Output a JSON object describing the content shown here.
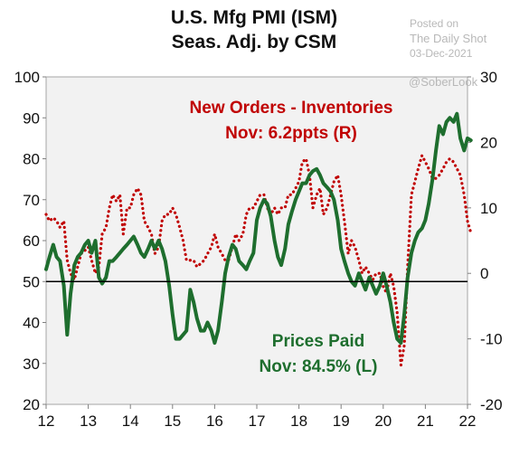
{
  "chart_data": {
    "type": "line",
    "title_lines": [
      "U.S. Mfg PMI (ISM)",
      "Seas. Adj.  by CSM"
    ],
    "watermark": {
      "posted_on": "Posted on",
      "source": "The Daily Shot",
      "date": "03-Dec-2021",
      "handle": "@SoberLook"
    },
    "x_ticks": [
      "12",
      "13",
      "14",
      "15",
      "16",
      "17",
      "18",
      "19",
      "20",
      "21",
      "22"
    ],
    "xlim": [
      2012,
      2022
    ],
    "left_axis": {
      "ylim": [
        20,
        100
      ],
      "ticks": [
        "100",
        "90",
        "80",
        "70",
        "60",
        "50",
        "40",
        "30",
        "20"
      ]
    },
    "right_axis": {
      "ylim": [
        -20,
        30
      ],
      "ticks": [
        "30",
        "20",
        "10",
        "0",
        "-10",
        "-20"
      ]
    },
    "reference_line": {
      "axis": "left",
      "value": 50
    },
    "background_color": "#f2f2f2",
    "series": [
      {
        "name": "Prices Paid",
        "axis": "left",
        "style": "solid",
        "color": "#1e6e2e",
        "label_lines": [
          "Prices Paid",
          "Nov: 84.5% (L)"
        ],
        "points": [
          [
            2012.0,
            53
          ],
          [
            2012.08,
            56
          ],
          [
            2012.17,
            59
          ],
          [
            2012.25,
            56
          ],
          [
            2012.33,
            55
          ],
          [
            2012.42,
            49
          ],
          [
            2012.5,
            37
          ],
          [
            2012.58,
            47
          ],
          [
            2012.67,
            54
          ],
          [
            2012.75,
            56
          ],
          [
            2012.83,
            57
          ],
          [
            2012.92,
            59
          ],
          [
            2013.0,
            60
          ],
          [
            2013.08,
            57
          ],
          [
            2013.17,
            60
          ],
          [
            2013.25,
            51
          ],
          [
            2013.33,
            49.5
          ],
          [
            2013.42,
            51
          ],
          [
            2013.5,
            55
          ],
          [
            2013.58,
            55
          ],
          [
            2013.67,
            56
          ],
          [
            2013.75,
            57
          ],
          [
            2013.83,
            58
          ],
          [
            2013.92,
            59
          ],
          [
            2014.0,
            60
          ],
          [
            2014.08,
            61
          ],
          [
            2014.17,
            59
          ],
          [
            2014.25,
            57
          ],
          [
            2014.33,
            56
          ],
          [
            2014.42,
            58
          ],
          [
            2014.5,
            60
          ],
          [
            2014.58,
            58
          ],
          [
            2014.67,
            60
          ],
          [
            2014.75,
            58
          ],
          [
            2014.83,
            55
          ],
          [
            2014.92,
            49
          ],
          [
            2015.0,
            42
          ],
          [
            2015.08,
            36
          ],
          [
            2015.17,
            36
          ],
          [
            2015.25,
            37
          ],
          [
            2015.33,
            38
          ],
          [
            2015.42,
            48
          ],
          [
            2015.5,
            45
          ],
          [
            2015.58,
            41
          ],
          [
            2015.67,
            38
          ],
          [
            2015.75,
            38
          ],
          [
            2015.83,
            40
          ],
          [
            2015.92,
            38
          ],
          [
            2016.0,
            35
          ],
          [
            2016.08,
            38
          ],
          [
            2016.17,
            45
          ],
          [
            2016.25,
            52
          ],
          [
            2016.33,
            56
          ],
          [
            2016.42,
            59
          ],
          [
            2016.5,
            58
          ],
          [
            2016.58,
            55
          ],
          [
            2016.67,
            54
          ],
          [
            2016.75,
            53
          ],
          [
            2016.83,
            55
          ],
          [
            2016.92,
            57
          ],
          [
            2017.0,
            65
          ],
          [
            2017.08,
            68
          ],
          [
            2017.17,
            70
          ],
          [
            2017.25,
            69
          ],
          [
            2017.33,
            66
          ],
          [
            2017.42,
            60
          ],
          [
            2017.5,
            56
          ],
          [
            2017.58,
            54
          ],
          [
            2017.67,
            58
          ],
          [
            2017.75,
            64
          ],
          [
            2017.83,
            67
          ],
          [
            2017.92,
            70
          ],
          [
            2018.0,
            72
          ],
          [
            2018.08,
            74
          ],
          [
            2018.17,
            74
          ],
          [
            2018.25,
            76
          ],
          [
            2018.33,
            77
          ],
          [
            2018.42,
            77.5
          ],
          [
            2018.5,
            76
          ],
          [
            2018.58,
            74
          ],
          [
            2018.67,
            73
          ],
          [
            2018.75,
            72
          ],
          [
            2018.83,
            70
          ],
          [
            2018.92,
            65
          ],
          [
            2019.0,
            58
          ],
          [
            2019.08,
            55
          ],
          [
            2019.17,
            52
          ],
          [
            2019.25,
            50
          ],
          [
            2019.33,
            49
          ],
          [
            2019.42,
            52
          ],
          [
            2019.5,
            50
          ],
          [
            2019.58,
            48
          ],
          [
            2019.67,
            51
          ],
          [
            2019.75,
            49
          ],
          [
            2019.83,
            47
          ],
          [
            2019.92,
            49
          ],
          [
            2020.0,
            52
          ],
          [
            2020.08,
            49
          ],
          [
            2020.17,
            45
          ],
          [
            2020.25,
            40
          ],
          [
            2020.33,
            36
          ],
          [
            2020.42,
            35
          ],
          [
            2020.5,
            42
          ],
          [
            2020.58,
            51
          ],
          [
            2020.67,
            57
          ],
          [
            2020.75,
            60
          ],
          [
            2020.83,
            62
          ],
          [
            2020.92,
            63
          ],
          [
            2021.0,
            65
          ],
          [
            2021.08,
            69
          ],
          [
            2021.17,
            75
          ],
          [
            2021.25,
            82
          ],
          [
            2021.33,
            88
          ],
          [
            2021.42,
            86
          ],
          [
            2021.5,
            89
          ],
          [
            2021.58,
            90
          ],
          [
            2021.67,
            89
          ],
          [
            2021.75,
            91
          ],
          [
            2021.83,
            85
          ],
          [
            2021.92,
            82
          ],
          [
            2022.0,
            85
          ],
          [
            2022.08,
            84.5
          ]
        ]
      },
      {
        "name": "New Orders - Inventories",
        "axis": "right",
        "style": "dotted",
        "color": "#c00000",
        "label_lines": [
          "New Orders - Inventories",
          "Nov: 6.2ppts (R)"
        ],
        "points": [
          [
            2012.0,
            9
          ],
          [
            2012.08,
            8
          ],
          [
            2012.17,
            8.5
          ],
          [
            2012.25,
            8
          ],
          [
            2012.33,
            7
          ],
          [
            2012.42,
            8
          ],
          [
            2012.5,
            2
          ],
          [
            2012.58,
            0
          ],
          [
            2012.67,
            -1
          ],
          [
            2012.75,
            1
          ],
          [
            2012.83,
            3
          ],
          [
            2012.92,
            3.5
          ],
          [
            2013.0,
            4
          ],
          [
            2013.08,
            2
          ],
          [
            2013.17,
            0
          ],
          [
            2013.25,
            1
          ],
          [
            2013.33,
            6
          ],
          [
            2013.42,
            7
          ],
          [
            2013.5,
            10
          ],
          [
            2013.58,
            12
          ],
          [
            2013.67,
            11
          ],
          [
            2013.75,
            12
          ],
          [
            2013.83,
            6
          ],
          [
            2013.92,
            10
          ],
          [
            2014.0,
            10
          ],
          [
            2014.08,
            12
          ],
          [
            2014.17,
            13
          ],
          [
            2014.25,
            12
          ],
          [
            2014.33,
            8
          ],
          [
            2014.42,
            7
          ],
          [
            2014.5,
            6
          ],
          [
            2014.58,
            3
          ],
          [
            2014.67,
            4
          ],
          [
            2014.75,
            8
          ],
          [
            2014.83,
            9
          ],
          [
            2014.92,
            9
          ],
          [
            2015.0,
            10
          ],
          [
            2015.08,
            9
          ],
          [
            2015.17,
            7
          ],
          [
            2015.25,
            5
          ],
          [
            2015.33,
            2
          ],
          [
            2015.42,
            2
          ],
          [
            2015.5,
            2
          ],
          [
            2015.58,
            1
          ],
          [
            2015.67,
            1.5
          ],
          [
            2015.75,
            2
          ],
          [
            2015.83,
            3
          ],
          [
            2015.92,
            4
          ],
          [
            2016.0,
            6
          ],
          [
            2016.08,
            4
          ],
          [
            2016.17,
            3
          ],
          [
            2016.25,
            2
          ],
          [
            2016.33,
            2
          ],
          [
            2016.42,
            4
          ],
          [
            2016.5,
            6
          ],
          [
            2016.58,
            5
          ],
          [
            2016.67,
            6
          ],
          [
            2016.75,
            9
          ],
          [
            2016.83,
            10
          ],
          [
            2016.92,
            10
          ],
          [
            2017.0,
            11
          ],
          [
            2017.08,
            12
          ],
          [
            2017.17,
            12
          ],
          [
            2017.25,
            10
          ],
          [
            2017.33,
            9
          ],
          [
            2017.42,
            10
          ],
          [
            2017.5,
            9
          ],
          [
            2017.58,
            10
          ],
          [
            2017.67,
            10
          ],
          [
            2017.75,
            12
          ],
          [
            2017.83,
            12
          ],
          [
            2017.92,
            13
          ],
          [
            2018.0,
            14
          ],
          [
            2018.08,
            17
          ],
          [
            2018.17,
            17.5
          ],
          [
            2018.25,
            15
          ],
          [
            2018.33,
            10
          ],
          [
            2018.42,
            12
          ],
          [
            2018.5,
            13
          ],
          [
            2018.58,
            9
          ],
          [
            2018.67,
            10
          ],
          [
            2018.75,
            12
          ],
          [
            2018.83,
            14
          ],
          [
            2018.92,
            15
          ],
          [
            2019.0,
            12
          ],
          [
            2019.08,
            8
          ],
          [
            2019.17,
            3
          ],
          [
            2019.25,
            5
          ],
          [
            2019.33,
            4
          ],
          [
            2019.42,
            2
          ],
          [
            2019.5,
            0
          ],
          [
            2019.58,
            1
          ],
          [
            2019.67,
            0
          ],
          [
            2019.75,
            -1
          ],
          [
            2019.83,
            0
          ],
          [
            2019.92,
            0
          ],
          [
            2020.0,
            -2
          ],
          [
            2020.08,
            -3
          ],
          [
            2020.17,
            0
          ],
          [
            2020.25,
            -2
          ],
          [
            2020.33,
            -6
          ],
          [
            2020.42,
            -14
          ],
          [
            2020.5,
            -11
          ],
          [
            2020.58,
            1
          ],
          [
            2020.67,
            12
          ],
          [
            2020.75,
            14
          ],
          [
            2020.83,
            16
          ],
          [
            2020.92,
            18
          ],
          [
            2021.0,
            17
          ],
          [
            2021.08,
            16
          ],
          [
            2021.17,
            14.5
          ],
          [
            2021.25,
            14.5
          ],
          [
            2021.33,
            15
          ],
          [
            2021.42,
            16
          ],
          [
            2021.5,
            17
          ],
          [
            2021.58,
            17.5
          ],
          [
            2021.67,
            17
          ],
          [
            2021.75,
            16
          ],
          [
            2021.83,
            15
          ],
          [
            2021.92,
            12
          ],
          [
            2022.0,
            8
          ],
          [
            2022.08,
            6.2
          ]
        ]
      }
    ]
  }
}
